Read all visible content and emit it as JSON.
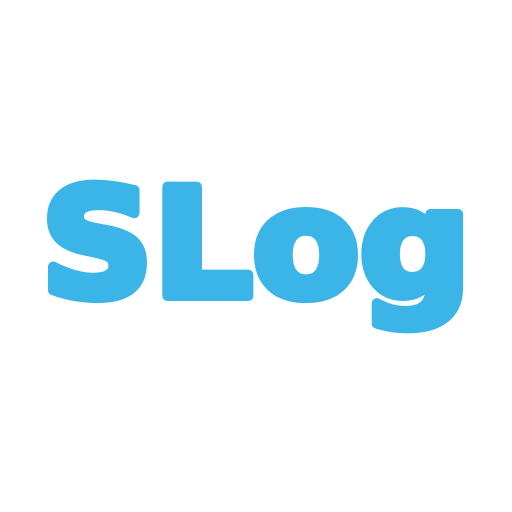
{
  "logo": {
    "text": "SLog",
    "color": "#3bb4e8",
    "background": "#ffffff"
  }
}
